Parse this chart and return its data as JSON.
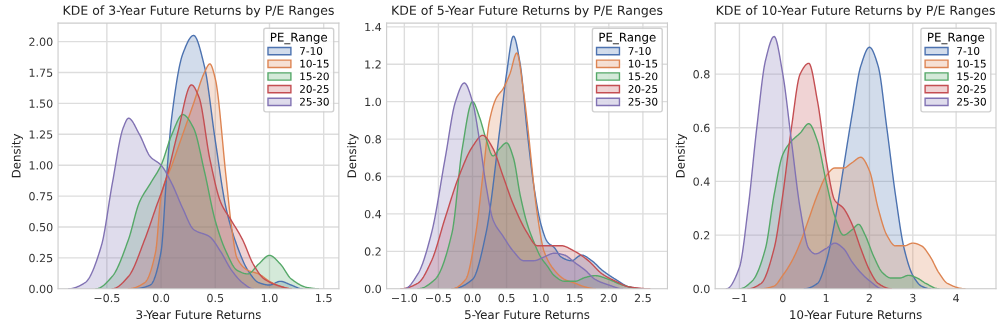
{
  "chart_data": [
    {
      "type": "area",
      "title": "KDE of 3-Year Future Returns by P/E Ranges",
      "xlabel": "3-Year Future Returns",
      "ylabel": "Density",
      "legend_title": "PE_Range",
      "legend": "top right",
      "grid": true,
      "xlim": [
        -0.95,
        1.64
      ],
      "ylim": [
        0,
        2.15
      ],
      "xticks": [
        {
          "value": -0.5,
          "label": "−0.5"
        },
        {
          "value": 0,
          "label": "0.0"
        },
        {
          "value": 0.5,
          "label": "0.5"
        },
        {
          "value": 1,
          "label": "1.0"
        },
        {
          "value": 1.5,
          "label": "1.5"
        }
      ],
      "yticks": [
        {
          "value": 0,
          "label": "0.00"
        },
        {
          "value": 0.25,
          "label": "0.25"
        },
        {
          "value": 0.5,
          "label": "0.50"
        },
        {
          "value": 0.75,
          "label": "0.75"
        },
        {
          "value": 1,
          "label": "1.00"
        },
        {
          "value": 1.25,
          "label": "1.25"
        },
        {
          "value": 1.5,
          "label": "1.50"
        },
        {
          "value": 1.75,
          "label": "1.75"
        },
        {
          "value": 2,
          "label": "2.00"
        }
      ],
      "series": [
        {
          "name": "7-10",
          "color": "#4c72b0",
          "x": [
            -0.25,
            -0.1,
            0.0,
            0.05,
            0.1,
            0.2,
            0.3,
            0.4,
            0.5,
            0.6,
            0.7,
            0.8,
            0.9,
            1.0,
            1.1,
            1.2,
            1.3
          ],
          "values": [
            0,
            0.03,
            0.3,
            0.9,
            1.4,
            1.9,
            2.05,
            1.8,
            1.2,
            0.65,
            0.35,
            0.15,
            0.05,
            0.03,
            0.06,
            0.03,
            0
          ]
        },
        {
          "name": "10-15",
          "color": "#dd8452",
          "x": [
            -0.3,
            -0.15,
            -0.05,
            0.0,
            0.1,
            0.2,
            0.3,
            0.4,
            0.45,
            0.5,
            0.6,
            0.65,
            0.7,
            0.8,
            0.9,
            1.0,
            1.1,
            1.2
          ],
          "values": [
            0,
            0.05,
            0.3,
            0.75,
            1.0,
            1.25,
            1.5,
            1.75,
            1.82,
            1.7,
            0.9,
            0.5,
            0.25,
            0.15,
            0.12,
            0.06,
            0.02,
            0
          ]
        },
        {
          "name": "15-20",
          "color": "#55a868",
          "x": [
            -0.6,
            -0.45,
            -0.3,
            -0.2,
            -0.1,
            0.0,
            0.1,
            0.2,
            0.3,
            0.4,
            0.5,
            0.6,
            0.7,
            0.8,
            0.9,
            1.0,
            1.1,
            1.2,
            1.35,
            1.45
          ],
          "values": [
            0,
            0.1,
            0.4,
            0.7,
            0.85,
            1.0,
            1.25,
            1.41,
            1.3,
            0.95,
            0.55,
            0.3,
            0.15,
            0.12,
            0.2,
            0.27,
            0.2,
            0.08,
            0.01,
            0
          ]
        },
        {
          "name": "20-25",
          "color": "#c44e52",
          "x": [
            -0.45,
            -0.3,
            -0.15,
            -0.05,
            0.05,
            0.15,
            0.28,
            0.35,
            0.45,
            0.55,
            0.65,
            0.75,
            0.85,
            0.95,
            1.1,
            1.2
          ],
          "values": [
            0,
            0.1,
            0.4,
            0.65,
            0.9,
            1.25,
            1.65,
            1.55,
            1.05,
            0.7,
            0.55,
            0.4,
            0.2,
            0.08,
            0.02,
            0
          ]
        },
        {
          "name": "25-30",
          "color": "#8172b3",
          "x": [
            -0.85,
            -0.7,
            -0.55,
            -0.45,
            -0.35,
            -0.3,
            -0.2,
            -0.1,
            0.0,
            0.1,
            0.2,
            0.3,
            0.45,
            0.55,
            0.65,
            0.75,
            0.85
          ],
          "values": [
            0,
            0.05,
            0.35,
            0.85,
            1.3,
            1.38,
            1.25,
            1.07,
            1.0,
            0.85,
            0.65,
            0.48,
            0.42,
            0.3,
            0.15,
            0.05,
            0
          ]
        }
      ]
    },
    {
      "type": "area",
      "title": "KDE of 5-Year Future Returns by P/E Ranges",
      "xlabel": "5-Year Future Returns",
      "ylabel": "Density",
      "legend_title": "PE_Range",
      "legend": "top right",
      "grid": true,
      "xlim": [
        -1.26,
        2.86
      ],
      "ylim": [
        0,
        1.42
      ],
      "xticks": [
        {
          "value": -1,
          "label": "−1.0"
        },
        {
          "value": -0.5,
          "label": "−0.5"
        },
        {
          "value": 0,
          "label": "0.0"
        },
        {
          "value": 0.5,
          "label": "0.5"
        },
        {
          "value": 1,
          "label": "1.0"
        },
        {
          "value": 1.5,
          "label": "1.5"
        },
        {
          "value": 2,
          "label": "2.0"
        },
        {
          "value": 2.5,
          "label": "2.5"
        }
      ],
      "yticks": [
        {
          "value": 0,
          "label": "0.0"
        },
        {
          "value": 0.2,
          "label": "0.2"
        },
        {
          "value": 0.4,
          "label": "0.4"
        },
        {
          "value": 0.6,
          "label": "0.6"
        },
        {
          "value": 0.8,
          "label": "0.8"
        },
        {
          "value": 1,
          "label": "1.0"
        },
        {
          "value": 1.2,
          "label": "1.2"
        },
        {
          "value": 1.4,
          "label": "1.4"
        }
      ],
      "series": [
        {
          "name": "7-10",
          "color": "#4c72b0",
          "x": [
            -0.3,
            0,
            0.2,
            0.4,
            0.5,
            0.6,
            0.7,
            0.8,
            0.9,
            1.0,
            1.1,
            1.2,
            1.3,
            1.45,
            1.6,
            1.75,
            1.9,
            2.1,
            2.3,
            2.5
          ],
          "values": [
            0,
            0.05,
            0.3,
            0.85,
            1.15,
            1.35,
            1.2,
            0.85,
            0.55,
            0.35,
            0.25,
            0.22,
            0.17,
            0.15,
            0.18,
            0.15,
            0.1,
            0.05,
            0.01,
            0
          ]
        },
        {
          "name": "10-15",
          "color": "#dd8452",
          "x": [
            -0.3,
            -0.1,
            0.05,
            0.15,
            0.25,
            0.35,
            0.45,
            0.55,
            0.65,
            0.75,
            0.8,
            0.95,
            1.05,
            1.2,
            1.35,
            1.5,
            1.65,
            1.8
          ],
          "values": [
            0,
            0.05,
            0.3,
            0.6,
            0.9,
            1.02,
            1.07,
            1.15,
            1.26,
            1.05,
            0.9,
            0.4,
            0.2,
            0.1,
            0.05,
            0.03,
            0.01,
            0
          ]
        },
        {
          "name": "15-20",
          "color": "#55a868",
          "x": [
            -0.8,
            -0.55,
            -0.3,
            -0.15,
            0.0,
            0.1,
            0.2,
            0.3,
            0.4,
            0.5,
            0.6,
            0.7,
            0.8,
            0.9,
            1.0,
            1.1,
            1.2,
            1.35,
            1.5,
            1.65,
            1.8,
            2.0,
            2.2,
            2.45
          ],
          "values": [
            0,
            0.05,
            0.3,
            0.75,
            1.0,
            0.92,
            0.8,
            0.71,
            0.75,
            0.78,
            0.7,
            0.5,
            0.35,
            0.25,
            0.17,
            0.12,
            0.07,
            0.04,
            0.04,
            0.06,
            0.07,
            0.05,
            0.02,
            0
          ]
        },
        {
          "name": "20-25",
          "color": "#c44e52",
          "x": [
            -1.05,
            -0.8,
            -0.6,
            -0.4,
            -0.2,
            0.0,
            0.15,
            0.3,
            0.45,
            0.6,
            0.8,
            0.95,
            1.1,
            1.3,
            1.5,
            1.7,
            1.9,
            2.1,
            2.3,
            2.6
          ],
          "values": [
            0,
            0.03,
            0.15,
            0.38,
            0.6,
            0.76,
            0.82,
            0.75,
            0.6,
            0.45,
            0.3,
            0.23,
            0.23,
            0.23,
            0.2,
            0.15,
            0.08,
            0.04,
            0.01,
            0
          ]
        },
        {
          "name": "25-30",
          "color": "#8172b3",
          "x": [
            -1.0,
            -0.8,
            -0.6,
            -0.4,
            -0.25,
            -0.12,
            0.0,
            0.1,
            0.2,
            0.3,
            0.45,
            0.6,
            0.75,
            0.9,
            1.05,
            1.2,
            1.35,
            1.5,
            1.65,
            1.8,
            2.0,
            2.2
          ],
          "values": [
            0,
            0.08,
            0.3,
            0.7,
            1.0,
            1.1,
            1.0,
            0.8,
            0.55,
            0.37,
            0.28,
            0.2,
            0.15,
            0.15,
            0.17,
            0.19,
            0.18,
            0.14,
            0.1,
            0.05,
            0.02,
            0
          ]
        }
      ]
    },
    {
      "type": "area",
      "title": "KDE of 10-Year Future Returns by P/E Ranges",
      "xlabel": "10-Year Future Returns",
      "ylabel": "Density",
      "legend_title": "PE_Range",
      "legend": "top right",
      "grid": true,
      "xlim": [
        -1.56,
        4.92
      ],
      "ylim": [
        0,
        0.99
      ],
      "xticks": [
        {
          "value": -1,
          "label": "−1"
        },
        0,
        1,
        2,
        3,
        4
      ],
      "yticks": [
        {
          "value": 0,
          "label": "0.0"
        },
        0.2,
        0.4,
        0.6,
        0.8
      ],
      "series": [
        {
          "name": "7-10",
          "color": "#4c72b0",
          "x": [
            0.5,
            0.8,
            1.0,
            1.2,
            1.4,
            1.6,
            1.8,
            2.0,
            2.2,
            2.4,
            2.6,
            2.8,
            3.0,
            3.2,
            3.4
          ],
          "values": [
            0,
            0.02,
            0.1,
            0.25,
            0.45,
            0.65,
            0.83,
            0.9,
            0.83,
            0.6,
            0.35,
            0.15,
            0.05,
            0.01,
            0
          ]
        },
        {
          "name": "10-15",
          "color": "#dd8452",
          "x": [
            -0.5,
            -0.2,
            0,
            0.2,
            0.4,
            0.6,
            0.8,
            1.0,
            1.2,
            1.4,
            1.6,
            1.8,
            2.0,
            2.2,
            2.4,
            2.6,
            2.8,
            3.0,
            3.2,
            3.4,
            3.6,
            3.8,
            4.2
          ],
          "values": [
            0,
            0.01,
            0.05,
            0.1,
            0.17,
            0.26,
            0.35,
            0.42,
            0.45,
            0.45,
            0.47,
            0.49,
            0.44,
            0.3,
            0.2,
            0.16,
            0.16,
            0.17,
            0.16,
            0.12,
            0.06,
            0.02,
            0
          ]
        },
        {
          "name": "15-20",
          "color": "#55a868",
          "x": [
            -1.0,
            -0.7,
            -0.4,
            -0.2,
            0.0,
            0.2,
            0.4,
            0.6,
            0.8,
            1.0,
            1.2,
            1.4,
            1.6,
            1.75,
            1.9,
            2.1,
            2.3,
            2.5,
            2.7,
            2.9,
            3.1,
            3.3,
            3.6
          ],
          "values": [
            0,
            0.03,
            0.15,
            0.35,
            0.5,
            0.55,
            0.58,
            0.615,
            0.55,
            0.4,
            0.27,
            0.2,
            0.22,
            0.24,
            0.2,
            0.12,
            0.06,
            0.04,
            0.04,
            0.05,
            0.04,
            0.02,
            0
          ]
        },
        {
          "name": "20-25",
          "color": "#c44e52",
          "x": [
            -0.8,
            -0.5,
            -0.2,
            0.0,
            0.2,
            0.4,
            0.6,
            0.8,
            1.0,
            1.2,
            1.4,
            1.6,
            1.8,
            2.0,
            2.2,
            2.5
          ],
          "values": [
            0,
            0.02,
            0.15,
            0.35,
            0.6,
            0.8,
            0.84,
            0.7,
            0.48,
            0.33,
            0.3,
            0.24,
            0.15,
            0.07,
            0.02,
            0
          ]
        },
        {
          "name": "25-30",
          "color": "#8172b3",
          "x": [
            -1.3,
            -1.0,
            -0.8,
            -0.6,
            -0.4,
            -0.2,
            0.0,
            0.2,
            0.4,
            0.6,
            0.75,
            1.0,
            1.2,
            1.4,
            1.6,
            1.8,
            2.0,
            2.3
          ],
          "values": [
            0,
            0.08,
            0.3,
            0.6,
            0.85,
            0.94,
            0.8,
            0.55,
            0.3,
            0.15,
            0.13,
            0.15,
            0.17,
            0.15,
            0.1,
            0.06,
            0.03,
            0
          ]
        }
      ]
    }
  ]
}
